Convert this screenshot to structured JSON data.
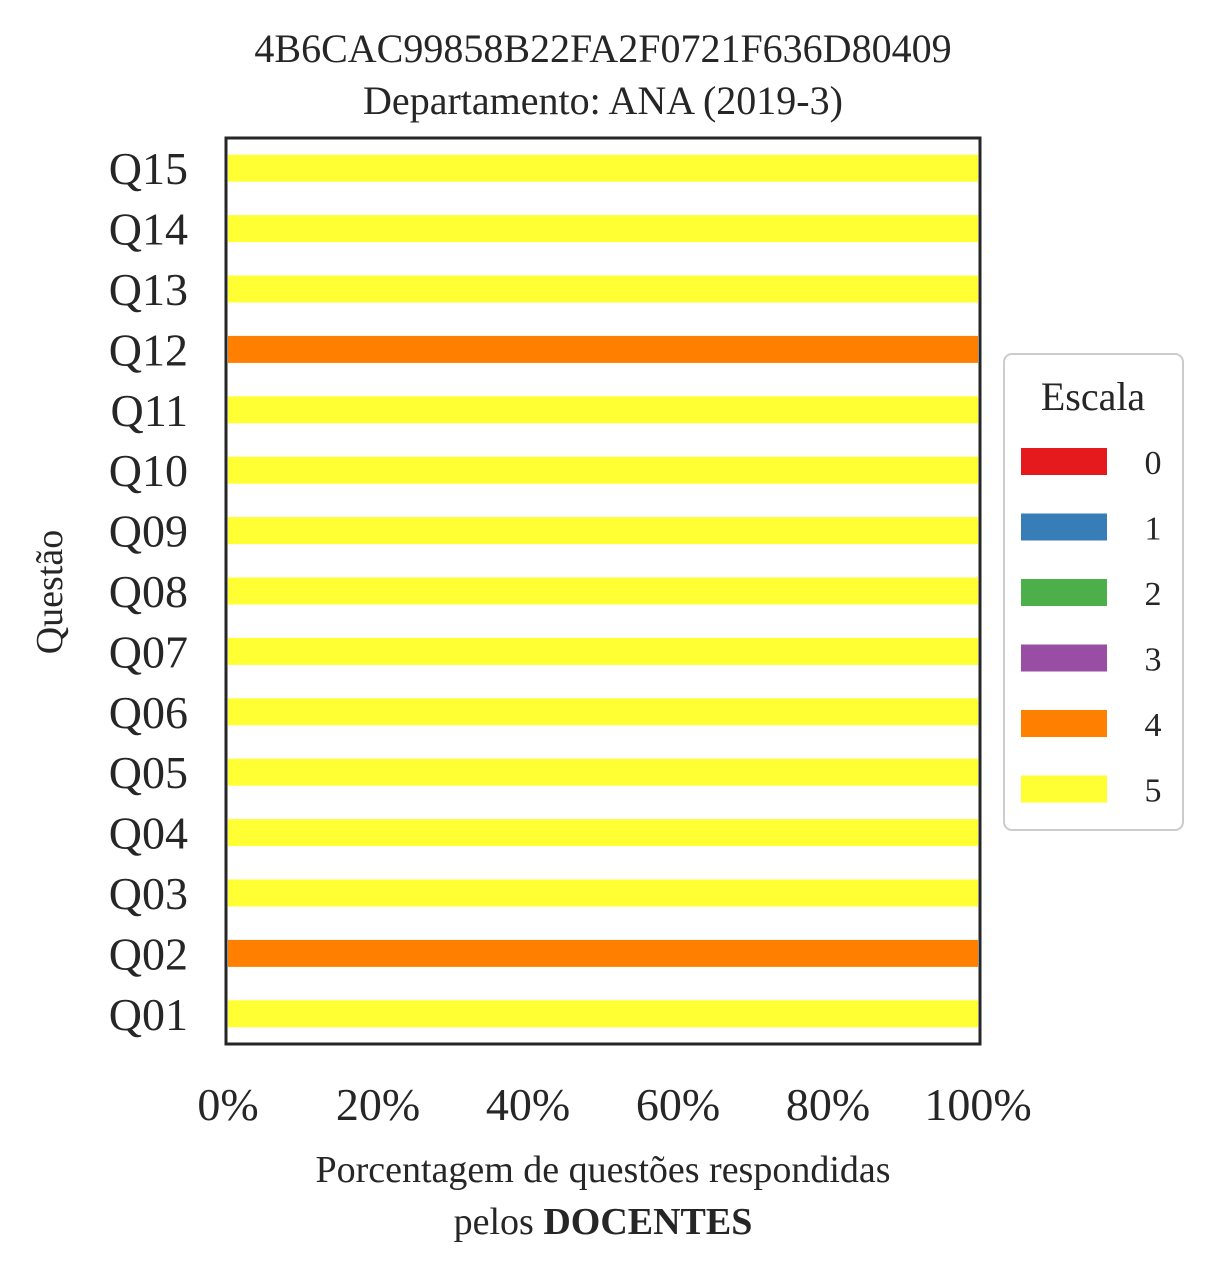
{
  "chart_data": {
    "type": "bar",
    "orientation": "horizontal",
    "stacked": true,
    "title": "4B6CAC99858B22FA2F0721F636D80409",
    "subtitle": "Departamento: ANA (2019-3)",
    "xlabel_line1": "Porcentagem de questões respondidas",
    "xlabel_line2_prefix": "pelos ",
    "xlabel_line2_bold": "DOCENTES",
    "ylabel": "Questão",
    "xlim": [
      0,
      100
    ],
    "x_ticks": [
      "0%",
      "20%",
      "40%",
      "60%",
      "80%",
      "100%"
    ],
    "x_tick_values": [
      0,
      20,
      40,
      60,
      80,
      100
    ],
    "categories": [
      "Q01",
      "Q02",
      "Q03",
      "Q04",
      "Q05",
      "Q06",
      "Q07",
      "Q08",
      "Q09",
      "Q10",
      "Q11",
      "Q12",
      "Q13",
      "Q14",
      "Q15"
    ],
    "series": [
      {
        "name": "0",
        "color": "#e41a1c",
        "values": [
          0,
          0,
          0,
          0,
          0,
          0,
          0,
          0,
          0,
          0,
          0,
          0,
          0,
          0,
          0
        ]
      },
      {
        "name": "1",
        "color": "#377eb8",
        "values": [
          0,
          0,
          0,
          0,
          0,
          0,
          0,
          0,
          0,
          0,
          0,
          0,
          0,
          0,
          0
        ]
      },
      {
        "name": "2",
        "color": "#4daf4a",
        "values": [
          0,
          0,
          0,
          0,
          0,
          0,
          0,
          0,
          0,
          0,
          0,
          0,
          0,
          0,
          0
        ]
      },
      {
        "name": "3",
        "color": "#984ea3",
        "values": [
          0,
          0,
          0,
          0,
          0,
          0,
          0,
          0,
          0,
          0,
          0,
          0,
          0,
          0,
          0
        ]
      },
      {
        "name": "4",
        "color": "#ff7f00",
        "values": [
          0,
          100,
          0,
          0,
          0,
          0,
          0,
          0,
          0,
          0,
          0,
          100,
          0,
          0,
          0
        ]
      },
      {
        "name": "5",
        "color": "#ffff33",
        "values": [
          100,
          0,
          100,
          100,
          100,
          100,
          100,
          100,
          100,
          100,
          100,
          0,
          100,
          100,
          100
        ]
      }
    ],
    "legend": {
      "title": "Escala",
      "placement": "center-right"
    },
    "grid": false
  }
}
